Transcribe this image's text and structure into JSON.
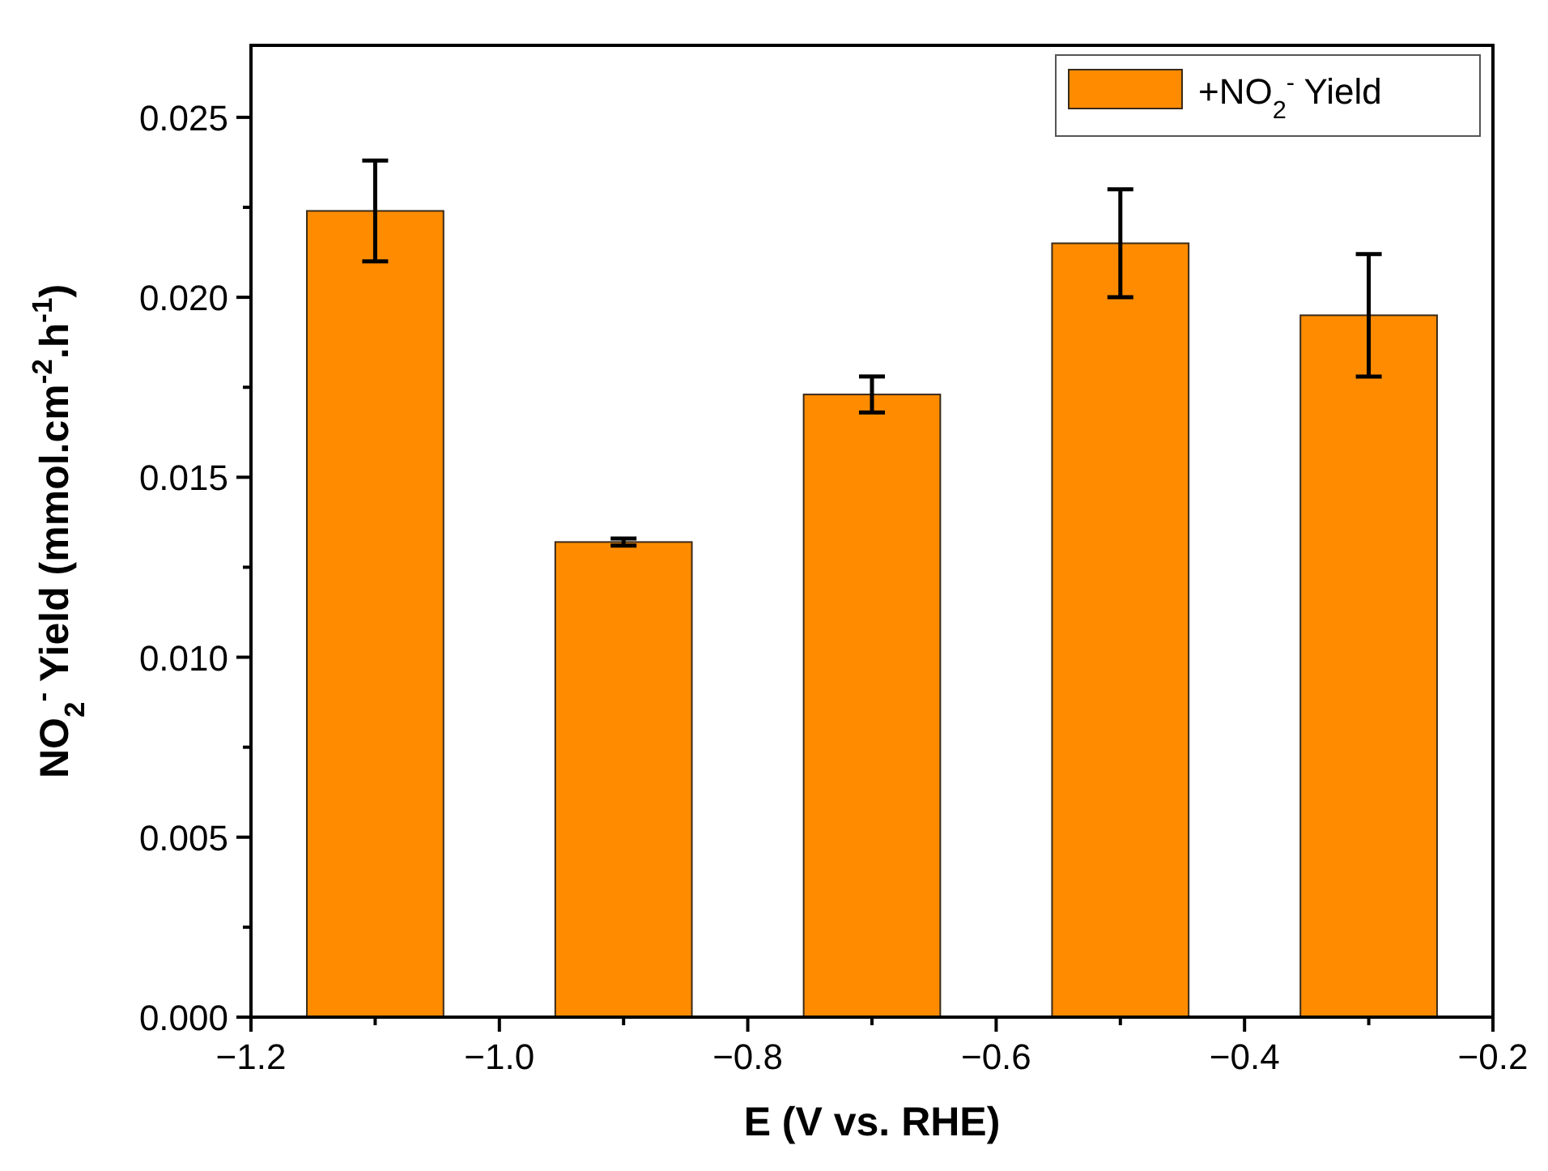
{
  "chart_data": {
    "type": "bar",
    "xlabel": "E (V vs. RHE)",
    "ylabel": "NO$_{2}$$^{-}$ Yield (mmol.cm$^{-2}$.h$^{-1}$)",
    "x": [
      -1.1,
      -0.9,
      -0.7,
      -0.5,
      -0.3
    ],
    "series": [
      {
        "name": "+NO$_{2}$$^{-}$ Yield",
        "color": "#ff8c00",
        "values": [
          0.0224,
          0.0132,
          0.0173,
          0.0215,
          0.0195
        ],
        "errors": [
          0.0014,
          0.0001,
          0.0005,
          0.0015,
          0.0017
        ]
      }
    ],
    "xlim": [
      -1.2,
      -0.2
    ],
    "xticks": [
      {
        "value": -1.2,
        "label": "−1.2"
      },
      {
        "value": -1.1,
        "label": null
      },
      {
        "value": -1.0,
        "label": "−1.0"
      },
      {
        "value": -0.9,
        "label": null
      },
      {
        "value": -0.8,
        "label": "−0.8"
      },
      {
        "value": -0.7,
        "label": null
      },
      {
        "value": -0.6,
        "label": "−0.6"
      },
      {
        "value": -0.5,
        "label": null
      },
      {
        "value": -0.4,
        "label": "−0.4"
      },
      {
        "value": -0.3,
        "label": null
      },
      {
        "value": -0.2,
        "label": "−0.2"
      }
    ],
    "ylim": [
      0,
      0.027
    ],
    "yticks": [
      {
        "value": 0,
        "label": "0.000"
      },
      {
        "value": 0.0025,
        "label": null
      },
      {
        "value": 0.005,
        "label": "0.005"
      },
      {
        "value": 0.0075,
        "label": null
      },
      {
        "value": 0.01,
        "label": "0.010"
      },
      {
        "value": 0.0125,
        "label": null
      },
      {
        "value": 0.015,
        "label": "0.015"
      },
      {
        "value": 0.0175,
        "label": null
      },
      {
        "value": 0.02,
        "label": "0.020"
      },
      {
        "value": 0.0225,
        "label": null
      },
      {
        "value": 0.025,
        "label": "0.025"
      }
    ],
    "legend": "top right",
    "grid": false
  }
}
